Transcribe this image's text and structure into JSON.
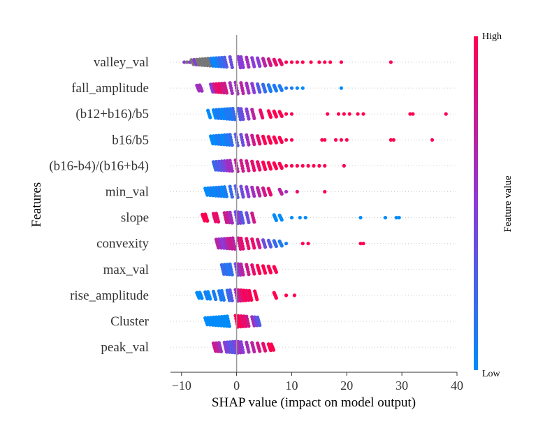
{
  "chart_data": {
    "type": "scatter",
    "subtype": "shap-beeswarm",
    "title": "",
    "xlabel": "SHAP value (impact on model output)",
    "ylabel": "Features",
    "xlim": [
      -12,
      40
    ],
    "xticks": [
      -10,
      0,
      10,
      20,
      30,
      40
    ],
    "colorbar": {
      "title": "Feature value",
      "high_label": "High",
      "low_label": "Low",
      "low_color": "#008bfb",
      "high_color": "#ff0051",
      "mid_color": "#8a3bd8"
    },
    "zero_line_color": "#999999",
    "missing_color": "#777777",
    "features": [
      {
        "name": "valley_val",
        "points": [
          [
            -9.5,
            0.5
          ],
          [
            -9.0,
            0.4
          ],
          [
            -8.5,
            0.5
          ],
          [
            -8.0,
            0.3
          ],
          [
            -7.5,
            0.5
          ],
          [
            -7.0,
            0.4
          ],
          [
            -6.5,
            0.3
          ],
          [
            -6.0,
            0.4
          ],
          [
            -5.5,
            0.3
          ],
          [
            -5.0,
            0.2
          ],
          [
            -4.5,
            0.1
          ],
          [
            -4.0,
            0.0
          ],
          [
            -3.5,
            0.1
          ],
          [
            -3.0,
            0.2
          ],
          [
            -2.5,
            0.2
          ],
          [
            -2.0,
            0.3
          ],
          [
            -1.0,
            0.4
          ],
          [
            0.5,
            0.5
          ],
          [
            1.0,
            0.5
          ],
          [
            2.0,
            0.6
          ],
          [
            3.0,
            0.5
          ],
          [
            4.0,
            0.5
          ],
          [
            5.0,
            0.7
          ],
          [
            6.0,
            0.8
          ],
          [
            7.0,
            0.9
          ],
          [
            8.0,
            0.9
          ],
          [
            9.0,
            1.0
          ],
          [
            10.0,
            1.0
          ],
          [
            11.0,
            1.0
          ],
          [
            12.0,
            1.0
          ],
          [
            13.5,
            1.0
          ],
          [
            15.0,
            1.0
          ],
          [
            16.0,
            1.0
          ],
          [
            17.0,
            1.0
          ],
          [
            19.0,
            1.0
          ],
          [
            28.0,
            1.0
          ]
        ]
      },
      {
        "name": "fall_amplitude",
        "points": [
          [
            -7.0,
            0.6
          ],
          [
            -6.5,
            0.6
          ],
          [
            -4.5,
            0.5
          ],
          [
            -4.0,
            0.8
          ],
          [
            -3.5,
            0.9
          ],
          [
            -3.0,
            0.9
          ],
          [
            -2.5,
            0.8
          ],
          [
            -2.0,
            0.8
          ],
          [
            -1.0,
            0.6
          ],
          [
            0.0,
            0.6
          ],
          [
            1.0,
            0.7
          ],
          [
            2.0,
            0.6
          ],
          [
            3.0,
            0.5
          ],
          [
            4.0,
            0.3
          ],
          [
            5.0,
            0.2
          ],
          [
            6.0,
            0.1
          ],
          [
            7.0,
            0.1
          ],
          [
            8.0,
            0.1
          ],
          [
            9.0,
            0.1
          ],
          [
            10.0,
            0.1
          ],
          [
            11.0,
            0.0
          ],
          [
            12.0,
            0.0
          ],
          [
            19.0,
            0.0
          ]
        ]
      },
      {
        "name": "(b12+b16)/b5",
        "points": [
          [
            -5.0,
            0.0
          ],
          [
            -4.0,
            0.0
          ],
          [
            -3.5,
            0.1
          ],
          [
            -3.0,
            0.1
          ],
          [
            -2.5,
            0.0
          ],
          [
            -2.0,
            0.1
          ],
          [
            -1.5,
            0.1
          ],
          [
            -1.0,
            0.1
          ],
          [
            -0.5,
            0.2
          ],
          [
            0.5,
            0.3
          ],
          [
            1.0,
            0.4
          ],
          [
            2.0,
            0.5
          ],
          [
            3.0,
            0.7
          ],
          [
            4.5,
            0.9
          ],
          [
            6.0,
            1.0
          ],
          [
            7.0,
            1.0
          ],
          [
            8.0,
            1.0
          ],
          [
            9.0,
            1.0
          ],
          [
            10.0,
            1.0
          ],
          [
            16.5,
            1.0
          ],
          [
            18.5,
            1.0
          ],
          [
            19.5,
            1.0
          ],
          [
            20.5,
            1.0
          ],
          [
            22.0,
            1.0
          ],
          [
            23.0,
            1.0
          ],
          [
            31.5,
            1.0
          ],
          [
            32.0,
            1.0
          ],
          [
            38.0,
            1.0
          ]
        ]
      },
      {
        "name": "b16/b5",
        "points": [
          [
            -4.5,
            0.0
          ],
          [
            -4.0,
            0.0
          ],
          [
            -3.5,
            0.1
          ],
          [
            -3.0,
            0.1
          ],
          [
            -2.5,
            0.0
          ],
          [
            -2.0,
            0.1
          ],
          [
            -1.5,
            0.1
          ],
          [
            -1.0,
            0.2
          ],
          [
            0.0,
            0.3
          ],
          [
            1.0,
            0.4
          ],
          [
            2.0,
            0.6
          ],
          [
            3.0,
            0.8
          ],
          [
            4.0,
            0.9
          ],
          [
            5.0,
            1.0
          ],
          [
            6.0,
            1.0
          ],
          [
            7.0,
            1.0
          ],
          [
            8.0,
            1.0
          ],
          [
            9.0,
            1.0
          ],
          [
            10.0,
            1.0
          ],
          [
            15.5,
            1.0
          ],
          [
            16.0,
            1.0
          ],
          [
            18.0,
            1.0
          ],
          [
            19.0,
            1.0
          ],
          [
            20.0,
            1.0
          ],
          [
            28.0,
            1.0
          ],
          [
            28.5,
            1.0
          ],
          [
            35.5,
            1.0
          ]
        ]
      },
      {
        "name": "(b16-b4)/(b16+b4)",
        "points": [
          [
            -4.0,
            0.2
          ],
          [
            -3.5,
            0.3
          ],
          [
            -3.0,
            0.3
          ],
          [
            -2.5,
            0.4
          ],
          [
            -2.0,
            0.5
          ],
          [
            -1.5,
            0.6
          ],
          [
            -1.0,
            0.6
          ],
          [
            0.0,
            0.7
          ],
          [
            1.0,
            0.8
          ],
          [
            2.0,
            0.8
          ],
          [
            3.0,
            0.9
          ],
          [
            4.0,
            0.9
          ],
          [
            5.0,
            1.0
          ],
          [
            6.0,
            1.0
          ],
          [
            7.0,
            1.0
          ],
          [
            8.0,
            1.0
          ],
          [
            9.0,
            1.0
          ],
          [
            10.0,
            1.0
          ],
          [
            11.0,
            1.0
          ],
          [
            12.0,
            1.0
          ],
          [
            13.0,
            1.0
          ],
          [
            14.0,
            1.0
          ],
          [
            15.0,
            1.0
          ],
          [
            16.0,
            1.0
          ],
          [
            19.5,
            1.0
          ]
        ]
      },
      {
        "name": "min_val",
        "points": [
          [
            -5.5,
            0.0
          ],
          [
            -5.0,
            0.0
          ],
          [
            -4.5,
            0.1
          ],
          [
            -4.0,
            0.0
          ],
          [
            -3.5,
            0.1
          ],
          [
            -3.0,
            0.1
          ],
          [
            -2.5,
            0.0
          ],
          [
            -2.0,
            0.1
          ],
          [
            -1.0,
            0.2
          ],
          [
            0.0,
            0.3
          ],
          [
            1.0,
            0.4
          ],
          [
            2.0,
            0.5
          ],
          [
            3.0,
            0.6
          ],
          [
            4.0,
            0.7
          ],
          [
            5.0,
            0.8
          ],
          [
            6.0,
            0.9
          ],
          [
            8.0,
            0.7
          ],
          [
            9.0,
            0.6
          ],
          [
            11.0,
            0.9
          ],
          [
            16.0,
            1.0
          ]
        ]
      },
      {
        "name": "slope",
        "points": [
          [
            -6.0,
            1.0
          ],
          [
            -5.5,
            1.0
          ],
          [
            -4.0,
            0.9
          ],
          [
            -3.5,
            0.9
          ],
          [
            -2.0,
            0.8
          ],
          [
            -1.5,
            0.7
          ],
          [
            -1.0,
            0.6
          ],
          [
            0.0,
            0.4
          ],
          [
            0.5,
            0.5
          ],
          [
            1.0,
            0.3
          ],
          [
            2.0,
            0.4
          ],
          [
            3.0,
            0.8
          ],
          [
            7.0,
            0.0
          ],
          [
            8.0,
            0.0
          ],
          [
            10.0,
            0.0
          ],
          [
            11.5,
            0.0
          ],
          [
            12.5,
            0.0
          ],
          [
            22.5,
            0.0
          ],
          [
            27.0,
            0.0
          ],
          [
            29.0,
            0.0
          ],
          [
            29.5,
            0.0
          ]
        ]
      },
      {
        "name": "convexity",
        "points": [
          [
            -3.5,
            0.7
          ],
          [
            -3.0,
            0.6
          ],
          [
            -2.5,
            0.5
          ],
          [
            -2.0,
            0.6
          ],
          [
            -1.5,
            0.7
          ],
          [
            -1.0,
            0.8
          ],
          [
            -0.5,
            0.7
          ],
          [
            0.5,
            0.8
          ],
          [
            1.0,
            0.9
          ],
          [
            2.0,
            0.9
          ],
          [
            3.0,
            0.9
          ],
          [
            4.0,
            0.8
          ],
          [
            5.0,
            0.4
          ],
          [
            6.0,
            0.3
          ],
          [
            7.0,
            0.2
          ],
          [
            8.0,
            0.1
          ],
          [
            9.0,
            0.1
          ],
          [
            12.0,
            1.0
          ],
          [
            13.0,
            1.0
          ],
          [
            22.5,
            1.0
          ],
          [
            23.0,
            1.0
          ]
        ]
      },
      {
        "name": "max_val",
        "points": [
          [
            -2.5,
            0.2
          ],
          [
            -2.0,
            0.2
          ],
          [
            -1.5,
            0.1
          ],
          [
            -1.0,
            0.2
          ],
          [
            0.0,
            0.4
          ],
          [
            0.5,
            0.6
          ],
          [
            1.0,
            0.7
          ],
          [
            2.0,
            0.8
          ],
          [
            3.0,
            0.9
          ],
          [
            4.0,
            1.0
          ],
          [
            5.0,
            1.0
          ],
          [
            6.0,
            1.0
          ],
          [
            7.0,
            1.0
          ]
        ]
      },
      {
        "name": "rise_amplitude",
        "points": [
          [
            -7.0,
            0.0
          ],
          [
            -6.5,
            0.0
          ],
          [
            -5.5,
            0.1
          ],
          [
            -5.0,
            0.0
          ],
          [
            -4.0,
            0.1
          ],
          [
            -3.0,
            0.1
          ],
          [
            -2.5,
            0.1
          ],
          [
            -1.5,
            0.2
          ],
          [
            -1.0,
            0.3
          ],
          [
            0.0,
            0.6
          ],
          [
            0.5,
            0.8
          ],
          [
            1.0,
            0.9
          ],
          [
            1.5,
            1.0
          ],
          [
            2.0,
            0.9
          ],
          [
            2.5,
            1.0
          ],
          [
            3.5,
            1.0
          ],
          [
            7.0,
            1.0
          ],
          [
            9.0,
            1.0
          ],
          [
            10.5,
            1.0
          ]
        ]
      },
      {
        "name": "Cluster",
        "points": [
          [
            -5.5,
            0.0
          ],
          [
            -5.0,
            0.0
          ],
          [
            -4.5,
            0.0
          ],
          [
            -4.0,
            0.0
          ],
          [
            -3.5,
            0.0
          ],
          [
            -3.0,
            0.0
          ],
          [
            -2.5,
            0.0
          ],
          [
            -2.0,
            0.0
          ],
          [
            -1.5,
            0.0
          ],
          [
            0.0,
            1.0
          ],
          [
            0.5,
            1.0
          ],
          [
            1.0,
            0.9
          ],
          [
            1.5,
            0.9
          ],
          [
            2.0,
            0.8
          ],
          [
            3.0,
            0.6
          ],
          [
            3.5,
            0.4
          ],
          [
            4.0,
            0.3
          ]
        ]
      },
      {
        "name": "peak_val",
        "points": [
          [
            -4.0,
            0.8
          ],
          [
            -3.5,
            0.7
          ],
          [
            -3.0,
            0.6
          ],
          [
            -2.0,
            0.5
          ],
          [
            -1.5,
            0.4
          ],
          [
            -1.0,
            0.3
          ],
          [
            -0.5,
            0.4
          ],
          [
            0.0,
            0.5
          ],
          [
            0.5,
            0.6
          ],
          [
            1.0,
            0.5
          ],
          [
            2.0,
            0.6
          ],
          [
            3.0,
            0.7
          ],
          [
            4.0,
            0.8
          ],
          [
            5.0,
            0.9
          ],
          [
            6.0,
            1.0
          ],
          [
            6.5,
            1.0
          ]
        ]
      }
    ]
  }
}
